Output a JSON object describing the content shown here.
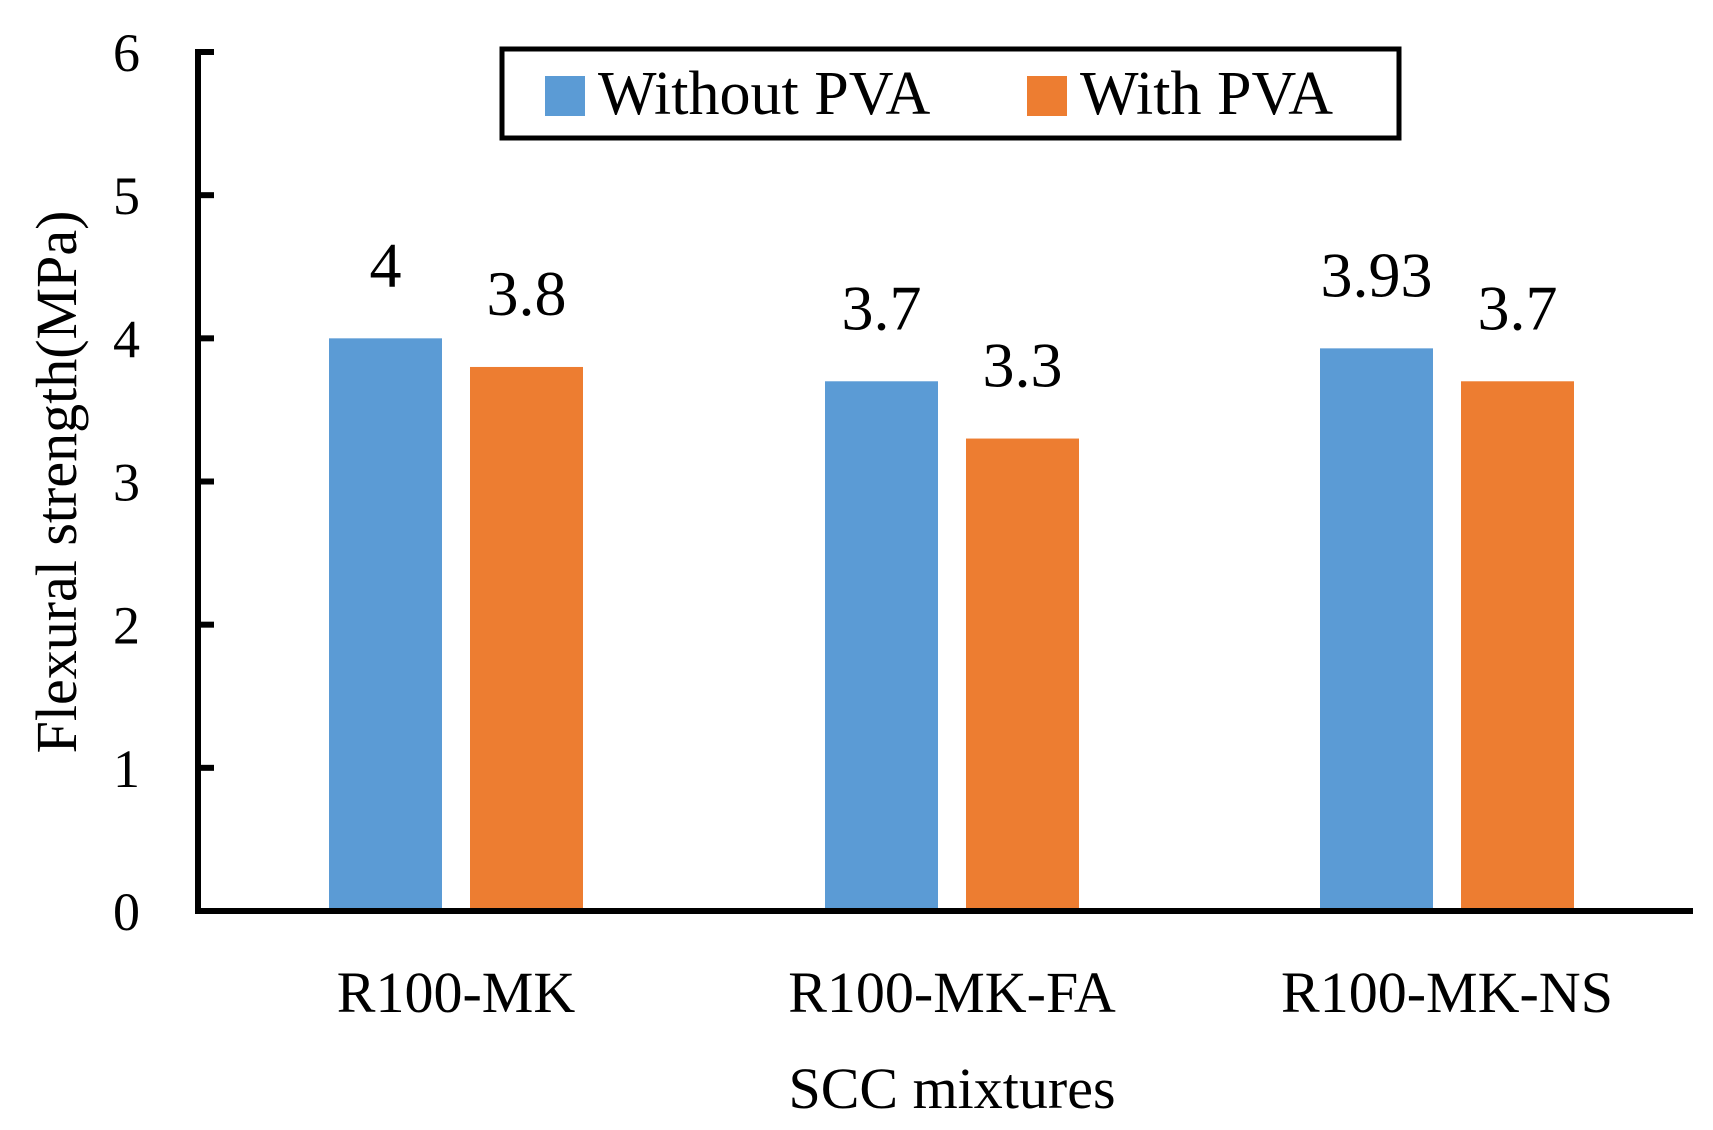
{
  "chart_data": {
    "type": "bar",
    "title": "",
    "xlabel": "SCC mixtures",
    "ylabel": "Flexural strength(MPa)",
    "ylim": [
      0,
      6
    ],
    "yticks": [
      0,
      1,
      2,
      3,
      4,
      5,
      6
    ],
    "ytick_labels": [
      "0",
      "1",
      "2",
      "3",
      "4",
      "5",
      "6"
    ],
    "grid": false,
    "legend_position": "top-center",
    "categories": [
      "R100-MK",
      "R100-MK-FA",
      "R100-MK-NS"
    ],
    "series": [
      {
        "name": "Without PVA",
        "color": "#5B9BD5",
        "values": [
          4,
          3.7,
          3.93
        ],
        "labels": [
          "4",
          "3.7",
          "3.93"
        ]
      },
      {
        "name": "With PVA",
        "color": "#ED7D31",
        "values": [
          3.8,
          3.3,
          3.7
        ],
        "labels": [
          "3.8",
          "3.3",
          "3.7"
        ]
      }
    ]
  }
}
